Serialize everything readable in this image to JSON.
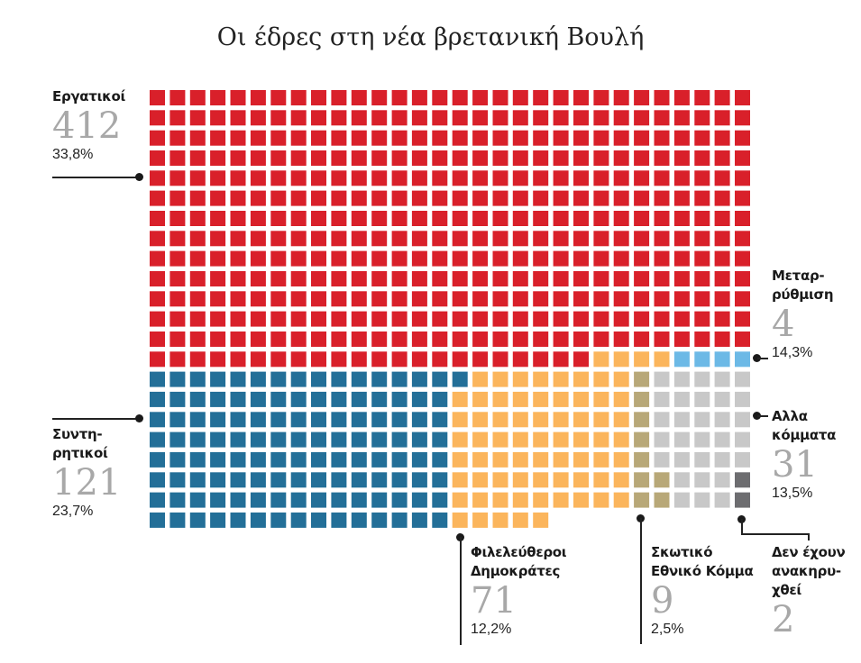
{
  "chart_data": {
    "type": "waffle",
    "title": "Οι έδρες στη νέα βρετανική Βουλή",
    "grid": {
      "columns": 30,
      "unit": "1 square = 1 seat"
    },
    "series": [
      {
        "key": "lab",
        "name": "Εργατικοί",
        "name_lines": [
          "Εργατικοί"
        ],
        "value": 412,
        "value_label": "412",
        "pct": "33,8%",
        "color": "#d9202a"
      },
      {
        "key": "con",
        "name": "Συντηρητικοί",
        "name_lines": [
          "Συντη-",
          "ρητικοί"
        ],
        "value": 121,
        "value_label": "121",
        "pct": "23,7%",
        "color": "#236f98"
      },
      {
        "key": "ld",
        "name": "Φιλελεύθεροι Δημοκράτες",
        "name_lines": [
          "Φιλελεύθεροι",
          "Δημοκράτες"
        ],
        "value": 71,
        "value_label": "71",
        "pct": "12,2%",
        "color": "#fbb55c"
      },
      {
        "key": "snp",
        "name": "Σκωτικό Εθνικό Κόμμα",
        "name_lines": [
          "Σκωτικό",
          "Εθνικό Κόμμα"
        ],
        "value": 9,
        "value_label": "9",
        "pct": "2,5%",
        "color": "#b8a878"
      },
      {
        "key": "ref",
        "name": "Μεταρρύθμιση",
        "name_lines": [
          "Μεταρ-",
          "ρύθμιση"
        ],
        "value": 4,
        "value_label": "4",
        "pct": "14,3%",
        "color": "#6cb9e6"
      },
      {
        "key": "oth",
        "name": "Αλλα κόμματα",
        "name_lines": [
          "Αλλα",
          "κόμματα"
        ],
        "value": 31,
        "value_label": "31",
        "pct": "13,5%",
        "color": "#c8c8c8"
      },
      {
        "key": "und",
        "name": "Δεν έχουν ανακηρυχθεί",
        "name_lines": [
          "Δεν έχουν",
          "ανακηρυ-",
          "χθεί"
        ],
        "value": 2,
        "value_label": "2",
        "pct": "",
        "color": "#6d6d70"
      }
    ]
  }
}
